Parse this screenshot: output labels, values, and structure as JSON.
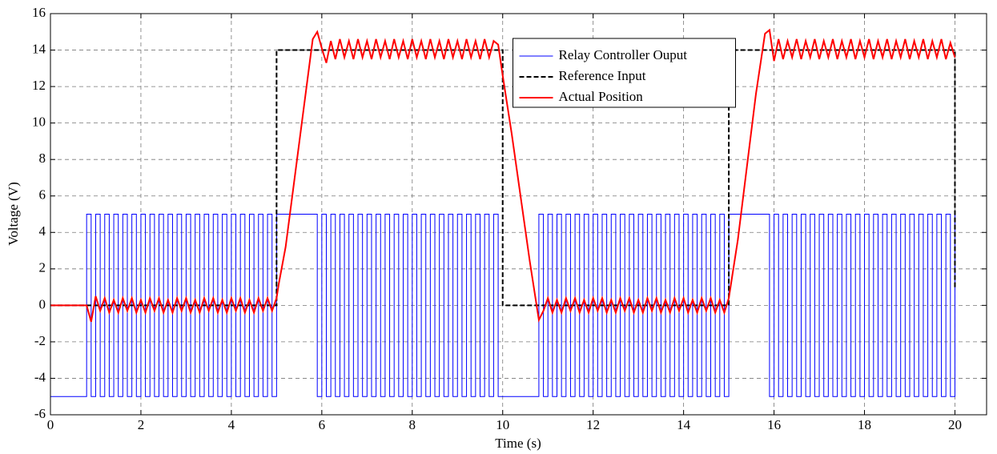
{
  "chart_data": {
    "type": "line",
    "xlabel": "Time (s)",
    "ylabel": "Voltage (V)",
    "xlim": [
      0,
      20.7
    ],
    "xticks": [
      0,
      2,
      4,
      6,
      8,
      10,
      12,
      14,
      16,
      18,
      20
    ],
    "ylim": [
      -6,
      16
    ],
    "yticks": [
      -6,
      -4,
      -2,
      0,
      2,
      4,
      6,
      8,
      10,
      12,
      14,
      16
    ],
    "grid": true,
    "legend": "upper center",
    "series": [
      {
        "name": "Relay Controller Ouput",
        "color": "#0000ff",
        "drawstyle": "steps",
        "x": [
          0,
          0.8,
          0.9,
          1,
          1.1,
          1.2,
          1.3,
          1.4,
          1.5,
          1.6,
          1.7,
          1.8,
          1.9,
          2,
          2.1,
          2.2,
          2.3,
          2.4,
          2.5,
          2.6,
          2.7,
          2.8,
          2.9,
          3,
          3.1,
          3.2,
          3.3,
          3.4,
          3.5,
          3.6,
          3.7,
          3.8,
          3.9,
          4,
          4.1,
          4.2,
          4.3,
          4.4,
          4.5,
          4.6,
          4.7,
          4.8,
          4.9,
          5,
          5.9,
          6,
          6.1,
          6.2,
          6.3,
          6.4,
          6.5,
          6.6,
          6.7,
          6.8,
          6.9,
          7,
          7.1,
          7.2,
          7.3,
          7.4,
          7.5,
          7.6,
          7.7,
          7.8,
          7.9,
          8,
          8.1,
          8.2,
          8.3,
          8.4,
          8.5,
          8.6,
          8.7,
          8.8,
          8.9,
          9,
          9.1,
          9.2,
          9.3,
          9.4,
          9.5,
          9.6,
          9.7,
          9.8,
          9.9,
          10.8,
          10.9,
          11,
          11.1,
          11.2,
          11.3,
          11.4,
          11.5,
          11.6,
          11.7,
          11.8,
          11.9,
          12,
          12.1,
          12.2,
          12.3,
          12.4,
          12.5,
          12.6,
          12.7,
          12.8,
          12.9,
          13,
          13.1,
          13.2,
          13.3,
          13.4,
          13.5,
          13.6,
          13.7,
          13.8,
          13.9,
          14,
          14.1,
          14.2,
          14.3,
          14.4,
          14.5,
          14.6,
          14.7,
          14.8,
          14.9,
          15,
          15.9,
          16,
          16.1,
          16.2,
          16.3,
          16.4,
          16.5,
          16.6,
          16.7,
          16.8,
          16.9,
          17,
          17.1,
          17.2,
          17.3,
          17.4,
          17.5,
          17.6,
          17.7,
          17.8,
          17.9,
          18,
          18.1,
          18.2,
          18.3,
          18.4,
          18.5,
          18.6,
          18.7,
          18.8,
          18.9,
          19,
          19.1,
          19.2,
          19.3,
          19.4,
          19.5,
          19.6,
          19.7,
          19.8,
          19.9,
          20
        ],
        "values": [
          -5,
          5,
          -5,
          5,
          -5,
          5,
          -5,
          5,
          -5,
          5,
          -5,
          5,
          -5,
          5,
          -5,
          5,
          -5,
          5,
          -5,
          5,
          -5,
          5,
          -5,
          5,
          -5,
          5,
          -5,
          5,
          -5,
          5,
          -5,
          5,
          -5,
          5,
          -5,
          5,
          -5,
          5,
          -5,
          5,
          -5,
          5,
          -5,
          5,
          -5,
          5,
          -5,
          5,
          -5,
          5,
          -5,
          5,
          -5,
          5,
          -5,
          5,
          -5,
          5,
          -5,
          5,
          -5,
          5,
          -5,
          5,
          -5,
          5,
          -5,
          5,
          -5,
          5,
          -5,
          5,
          -5,
          5,
          -5,
          5,
          -5,
          5,
          -5,
          5,
          -5,
          5,
          -5,
          5,
          -5,
          5,
          -5,
          5,
          -5,
          5,
          -5,
          5,
          -5,
          5,
          -5,
          5,
          -5,
          5,
          -5,
          5,
          -5,
          5,
          -5,
          5,
          -5,
          5,
          -5,
          5,
          -5,
          5,
          -5,
          5,
          -5,
          5,
          -5,
          5,
          -5,
          5,
          -5,
          5,
          -5,
          5,
          -5,
          5,
          -5,
          5,
          -5,
          5,
          -5,
          5,
          -5,
          5,
          -5,
          5,
          -5,
          5,
          -5,
          5,
          -5,
          5,
          -5,
          5,
          -5,
          5,
          -5,
          5,
          -5,
          5,
          -5,
          5,
          -5,
          5,
          -5,
          5,
          -5,
          5,
          -5,
          5,
          -5,
          5,
          -5,
          5,
          -5,
          5,
          -5,
          5,
          -5,
          5,
          -5,
          5
        ]
      },
      {
        "name": "Reference Input",
        "color": "#000000",
        "linestyle": "dashed",
        "x": [
          0,
          5,
          5,
          10,
          10,
          15,
          15,
          20,
          20
        ],
        "values": [
          0,
          0,
          14,
          14,
          0,
          0,
          14,
          14,
          1
        ]
      },
      {
        "name": "Actual Position",
        "color": "#ff0000",
        "x": [
          0,
          0.8,
          0.9,
          1,
          1.1,
          1.2,
          1.3,
          1.4,
          1.5,
          1.6,
          1.7,
          1.8,
          1.9,
          2,
          2.1,
          2.2,
          2.3,
          2.4,
          2.5,
          2.6,
          2.7,
          2.8,
          2.9,
          3,
          3.1,
          3.2,
          3.3,
          3.4,
          3.5,
          3.6,
          3.7,
          3.8,
          3.9,
          4,
          4.1,
          4.2,
          4.3,
          4.4,
          4.5,
          4.6,
          4.7,
          4.8,
          4.9,
          5,
          5.05,
          5.2,
          5.4,
          5.6,
          5.8,
          5.9,
          6,
          6.1,
          6.2,
          6.3,
          6.4,
          6.5,
          6.6,
          6.7,
          6.8,
          6.9,
          7,
          7.1,
          7.2,
          7.3,
          7.4,
          7.5,
          7.6,
          7.7,
          7.8,
          7.9,
          8,
          8.1,
          8.2,
          8.3,
          8.4,
          8.5,
          8.6,
          8.7,
          8.8,
          8.9,
          9,
          9.1,
          9.2,
          9.3,
          9.4,
          9.5,
          9.6,
          9.7,
          9.8,
          9.9,
          10,
          10.2,
          10.4,
          10.6,
          10.8,
          10.9,
          11,
          11.1,
          11.2,
          11.3,
          11.4,
          11.5,
          11.6,
          11.7,
          11.8,
          11.9,
          12,
          12.1,
          12.2,
          12.3,
          12.4,
          12.5,
          12.6,
          12.7,
          12.8,
          12.9,
          13,
          13.1,
          13.2,
          13.3,
          13.4,
          13.5,
          13.6,
          13.7,
          13.8,
          13.9,
          14,
          14.1,
          14.2,
          14.3,
          14.4,
          14.5,
          14.6,
          14.7,
          14.8,
          14.9,
          15,
          15.05,
          15.2,
          15.4,
          15.6,
          15.8,
          15.9,
          16,
          16.1,
          16.2,
          16.3,
          16.4,
          16.5,
          16.6,
          16.7,
          16.8,
          16.9,
          17,
          17.1,
          17.2,
          17.3,
          17.4,
          17.5,
          17.6,
          17.7,
          17.8,
          17.9,
          18,
          18.1,
          18.2,
          18.3,
          18.4,
          18.5,
          18.6,
          18.7,
          18.8,
          18.9,
          19,
          19.1,
          19.2,
          19.3,
          19.4,
          19.5,
          19.6,
          19.7,
          19.8,
          19.9,
          20
        ],
        "values": [
          0,
          0,
          -0.9,
          0.5,
          -0.3,
          0.4,
          -0.4,
          0.3,
          -0.4,
          0.4,
          -0.3,
          0.4,
          -0.4,
          0.3,
          -0.4,
          0.4,
          -0.3,
          0.4,
          -0.4,
          0.3,
          -0.4,
          0.4,
          -0.3,
          0.4,
          -0.4,
          0.3,
          -0.4,
          0.4,
          -0.3,
          0.4,
          -0.4,
          0.3,
          -0.4,
          0.4,
          -0.3,
          0.4,
          -0.4,
          0.3,
          -0.4,
          0.4,
          -0.3,
          0.4,
          -0.3,
          0.4,
          1.2,
          3.2,
          7,
          10.8,
          14.6,
          15,
          14.1,
          13.3,
          14.5,
          13.5,
          14.6,
          13.6,
          14.5,
          13.5,
          14.6,
          13.6,
          14.5,
          13.5,
          14.6,
          13.6,
          14.5,
          13.5,
          14.6,
          13.6,
          14.5,
          13.5,
          14.6,
          13.6,
          14.5,
          13.5,
          14.6,
          13.6,
          14.5,
          13.5,
          14.6,
          13.6,
          14.5,
          13.5,
          14.6,
          13.6,
          14.5,
          13.5,
          14.6,
          13.6,
          14.5,
          14.3,
          12.6,
          9.4,
          5.9,
          2.4,
          -0.8,
          -0.3,
          0.4,
          -0.4,
          0.3,
          -0.4,
          0.4,
          -0.3,
          0.4,
          -0.4,
          0.3,
          -0.4,
          0.4,
          -0.3,
          0.4,
          -0.4,
          0.3,
          -0.4,
          0.4,
          -0.3,
          0.4,
          -0.4,
          0.3,
          -0.4,
          0.4,
          -0.3,
          0.4,
          -0.4,
          0.3,
          -0.4,
          0.4,
          -0.3,
          0.4,
          -0.4,
          0.3,
          -0.4,
          0.4,
          -0.3,
          0.4,
          -0.4,
          0.3,
          -0.4,
          0.4,
          1.2,
          3.6,
          7.6,
          11.6,
          14.9,
          15.1,
          13.4,
          14.6,
          13.5,
          14.5,
          13.6,
          14.6,
          13.5,
          14.5,
          13.6,
          14.6,
          13.5,
          14.5,
          13.6,
          14.6,
          13.5,
          14.5,
          13.6,
          14.6,
          13.5,
          14.5,
          13.6,
          14.6,
          13.5,
          14.5,
          13.6,
          14.6,
          13.5,
          14.5,
          13.6,
          14.6,
          13.5,
          14.5,
          13.6,
          14.6,
          13.5,
          14.5,
          13.6,
          14.6,
          13.5,
          14.4,
          13.6
        ]
      }
    ]
  }
}
